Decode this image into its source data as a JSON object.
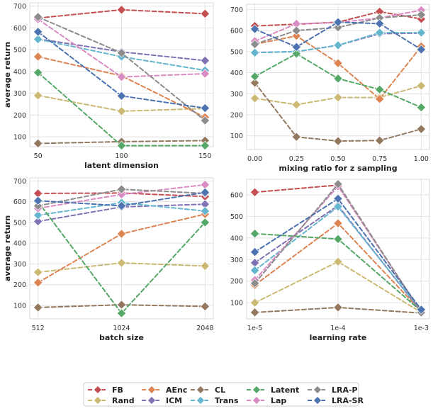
{
  "colors": {
    "FB": "#C44E52",
    "Rand": "#CCB974",
    "AEnc": "#DD8452",
    "ICM": "#8172B3",
    "CL": "#937860",
    "Trans": "#64B5CD",
    "Latent": "#55A868",
    "Lap": "#DA8BC3",
    "LRA-P": "#8C8C8C",
    "LRA-SR": "#4C72B0"
  },
  "legend_order": [
    "FB",
    "AEnc",
    "CL",
    "Latent",
    "LRA-P",
    "Rand",
    "ICM",
    "Trans",
    "Lap",
    "LRA-SR"
  ],
  "chart_data": [
    {
      "type": "line",
      "id": "p1",
      "x": [
        50,
        100,
        150
      ],
      "tick_labels": [
        "50",
        "100",
        "150"
      ],
      "xlabel": "latent dimension",
      "ylabel": "average return",
      "ylim": [
        55,
        715
      ],
      "yticks": [
        100,
        200,
        300,
        400,
        500,
        600,
        700
      ],
      "series": [
        {
          "name": "FB",
          "values": [
            645,
            683,
            665
          ]
        },
        {
          "name": "Rand",
          "values": [
            290,
            218,
            230
          ]
        },
        {
          "name": "AEnc",
          "values": [
            468,
            380,
            190
          ]
        },
        {
          "name": "ICM",
          "values": [
            550,
            490,
            450
          ]
        },
        {
          "name": "CL",
          "values": [
            70,
            78,
            83
          ]
        },
        {
          "name": "Trans",
          "values": [
            548,
            468,
            405
          ]
        },
        {
          "name": "Latent",
          "values": [
            395,
            60,
            60
          ]
        },
        {
          "name": "Lap",
          "values": [
            640,
            375,
            390
          ]
        },
        {
          "name": "LRA-P",
          "values": [
            650,
            485,
            175
          ]
        },
        {
          "name": "LRA-SR",
          "values": [
            582,
            288,
            232
          ]
        }
      ]
    },
    {
      "type": "line",
      "id": "p2",
      "x": [
        0.0,
        0.25,
        0.5,
        0.75,
        1.0
      ],
      "tick_labels": [
        "0.00",
        "0.25",
        "0.50",
        "0.75",
        "1.00"
      ],
      "xlabel": "mixing ratio for z sampling",
      "ylabel": "",
      "ylim": [
        35,
        725
      ],
      "yticks": [
        100,
        200,
        300,
        400,
        500,
        600,
        700
      ],
      "series": [
        {
          "name": "FB",
          "values": [
            622,
            630,
            640,
            690,
            655
          ]
        },
        {
          "name": "Rand",
          "values": [
            278,
            248,
            282,
            282,
            338
          ]
        },
        {
          "name": "AEnc",
          "values": [
            535,
            575,
            445,
            275,
            525
          ]
        },
        {
          "name": "ICM",
          "values": [
            495,
            500,
            530,
            585,
            588
          ]
        },
        {
          "name": "CL",
          "values": [
            352,
            95,
            75,
            78,
            132
          ]
        },
        {
          "name": "Trans",
          "values": [
            495,
            500,
            530,
            590,
            590
          ]
        },
        {
          "name": "Latent",
          "values": [
            382,
            490,
            372,
            320,
            235
          ]
        },
        {
          "name": "Lap",
          "values": [
            550,
            632,
            638,
            660,
            697
          ]
        },
        {
          "name": "LRA-P",
          "values": [
            535,
            600,
            615,
            660,
            675
          ]
        },
        {
          "name": "LRA-SR",
          "values": [
            607,
            522,
            640,
            633,
            510
          ]
        }
      ]
    },
    {
      "type": "line",
      "id": "p3",
      "x": [
        512,
        1024,
        2048
      ],
      "tick_labels": [
        "512",
        "1024",
        "2048"
      ],
      "xlabel": "batch size",
      "ylabel": "average return",
      "ylim": [
        35,
        715
      ],
      "yticks": [
        100,
        200,
        300,
        400,
        500,
        600,
        700
      ],
      "series": [
        {
          "name": "FB",
          "values": [
            640,
            642,
            625
          ]
        },
        {
          "name": "Rand",
          "values": [
            260,
            305,
            290
          ]
        },
        {
          "name": "AEnc",
          "values": [
            210,
            445,
            540
          ]
        },
        {
          "name": "ICM",
          "values": [
            505,
            575,
            588
          ]
        },
        {
          "name": "CL",
          "values": [
            90,
            103,
            95
          ]
        },
        {
          "name": "Trans",
          "values": [
            535,
            595,
            555
          ]
        },
        {
          "name": "Latent",
          "values": [
            600,
            62,
            500
          ]
        },
        {
          "name": "Lap",
          "values": [
            568,
            635,
            682
          ]
        },
        {
          "name": "LRA-P",
          "values": [
            580,
            660,
            640
          ]
        },
        {
          "name": "LRA-SR",
          "values": [
            605,
            580,
            645
          ]
        }
      ]
    },
    {
      "type": "line",
      "id": "p4",
      "x": [
        "1e-5",
        "1e-4",
        "1e-3"
      ],
      "tick_labels": [
        "1e-5",
        "1e-4",
        "1e-3"
      ],
      "xlabel": "learning rate",
      "ylabel": "",
      "ylim": [
        25,
        672
      ],
      "yticks": [
        100,
        200,
        300,
        400,
        500,
        600
      ],
      "series": [
        {
          "name": "FB",
          "values": [
            612,
            645,
            55
          ]
        },
        {
          "name": "Rand",
          "values": [
            100,
            290,
            55
          ]
        },
        {
          "name": "AEnc",
          "values": [
            182,
            468,
            60
          ]
        },
        {
          "name": "ICM",
          "values": [
            285,
            550,
            58
          ]
        },
        {
          "name": "CL",
          "values": [
            55,
            78,
            52
          ]
        },
        {
          "name": "Trans",
          "values": [
            250,
            545,
            62
          ]
        },
        {
          "name": "Latent",
          "values": [
            420,
            395,
            60
          ]
        },
        {
          "name": "Lap",
          "values": [
            205,
            640,
            58
          ]
        },
        {
          "name": "LRA-P",
          "values": [
            190,
            650,
            55
          ]
        },
        {
          "name": "LRA-SR",
          "values": [
            335,
            582,
            68
          ]
        }
      ]
    }
  ]
}
